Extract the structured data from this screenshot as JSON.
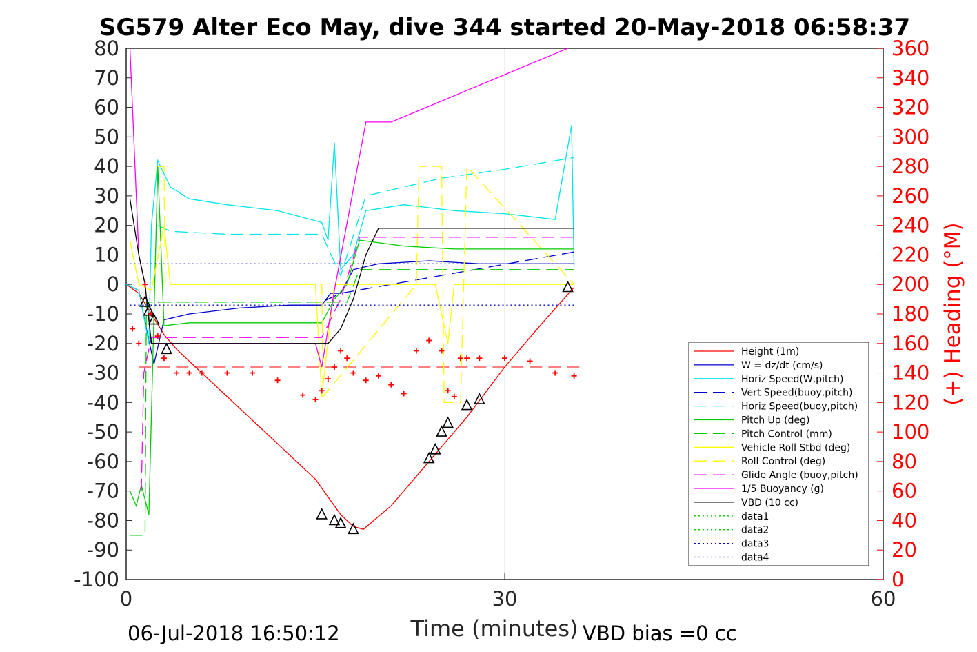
{
  "chart_data": {
    "type": "line",
    "title": "SG579 Alter Eco May, dive 344 started 20-May-2018 06:58:37",
    "xlabel": "Time (minutes)",
    "ylabel": "",
    "y2label": "(+) Heading (°M)",
    "xlim": [
      0,
      60
    ],
    "ylim": [
      -100,
      80
    ],
    "y2lim": [
      0,
      360
    ],
    "xticks": [
      "0",
      "30",
      "60"
    ],
    "yticks": [
      "80",
      "70",
      "60",
      "50",
      "40",
      "30",
      "20",
      "10",
      "0",
      "-10",
      "-20",
      "-30",
      "-40",
      "-50",
      "-60",
      "-70",
      "-80",
      "-90",
      "-100"
    ],
    "y2ticks": [
      "360",
      "340",
      "320",
      "300",
      "280",
      "260",
      "240",
      "220",
      "200",
      "180",
      "160",
      "140",
      "120",
      "100",
      "80",
      "60",
      "40",
      "20",
      "0"
    ],
    "grid": "x only",
    "legend_position": "bottom-right",
    "footer_left": "06-Jul-2018 16:50:12",
    "footer_right": "VBD bias =0 cc",
    "series": [
      {
        "name": "Height (1m)",
        "color": "#ff0000",
        "style": "solid",
        "x": [
          0.0,
          1.0,
          2.0,
          3.0,
          4.0,
          6.0,
          9.0,
          12.0,
          15.0,
          17.0,
          18.0,
          18.8,
          21.0,
          24.0,
          27.0,
          30.0,
          33.0,
          35.5
        ],
        "y": [
          0,
          -3,
          -10,
          -17,
          -22,
          -30,
          -42,
          -54,
          -66,
          -78,
          -82,
          -83,
          -75,
          -60,
          -45,
          -28,
          -13,
          -1
        ]
      },
      {
        "name": "W = dz/dt (cm/s)",
        "color": "#0000cc",
        "style": "solid",
        "x": [
          0.0,
          1.0,
          1.6,
          2.2,
          3.0,
          5,
          9,
          13,
          15.5,
          16.2,
          17,
          18,
          20,
          24,
          28,
          32,
          35.5
        ],
        "y": [
          0,
          -2,
          -15,
          -27,
          -12,
          -10,
          -8,
          -7,
          -7,
          -3,
          -3,
          5,
          7,
          8,
          7,
          7,
          7
        ]
      },
      {
        "name": "Horiz Speed(W,pitch)",
        "color": "#00e5e5",
        "style": "solid",
        "x": [
          0.0,
          1.0,
          1.8,
          2.0,
          2.5,
          3.5,
          5,
          8,
          12,
          15.5,
          16,
          16.5,
          17,
          18,
          19,
          22,
          26,
          30,
          34,
          35.3,
          35.5
        ],
        "y": [
          0,
          -2,
          -20,
          20,
          42,
          33,
          29,
          27,
          25,
          21,
          15,
          48,
          5,
          10,
          25,
          27,
          25,
          24,
          22,
          54,
          6
        ]
      },
      {
        "name": "Vert Speed(buoy,pitch)",
        "color": "#0000cc",
        "style": "dashed",
        "x": [
          2.5,
          15.5,
          17,
          35.5
        ],
        "y": [
          -6,
          -6,
          -3,
          11
        ]
      },
      {
        "name": "Horiz Speed(buoy,pitch)",
        "color": "#00e5e5",
        "style": "dashed",
        "x": [
          2.5,
          3.5,
          8,
          15.5,
          17,
          19,
          25,
          30,
          35.5
        ],
        "y": [
          20,
          18,
          17,
          17,
          3,
          30,
          36,
          39,
          43
        ]
      },
      {
        "name": "Pitch Up (deg)",
        "color": "#00cc00",
        "style": "solid",
        "x": [
          0.3,
          0.8,
          1.2,
          1.8,
          2.5,
          3.0,
          5,
          10,
          15.5,
          16.5,
          17.5,
          18.5,
          22,
          26,
          30,
          35.5
        ],
        "y": [
          -70,
          -75,
          -68,
          -78,
          40,
          -14,
          -13,
          -13,
          -13,
          -5,
          0,
          15,
          13,
          12,
          12,
          12
        ]
      },
      {
        "name": "Pitch Control (mm)",
        "color": "#00cc00",
        "style": "dashed",
        "x": [
          0.3,
          1.5,
          1.6,
          2.5,
          15.5,
          17.5,
          18.5,
          35.5
        ],
        "y": [
          -85,
          -85,
          -6,
          -6,
          -6,
          -6,
          5,
          5
        ]
      },
      {
        "name": "Vehicle Roll Stbd (deg)",
        "color": "#ffff00",
        "style": "solid",
        "x": [
          0.3,
          1.0,
          2.0,
          3.0,
          3.5,
          5,
          10,
          15,
          15.5,
          16.5,
          17,
          22,
          24.5,
          25.5,
          26,
          28,
          32,
          35.5
        ],
        "y": [
          15,
          0,
          -2,
          20,
          0,
          0,
          0,
          0,
          -38,
          0,
          0,
          0,
          0,
          -20,
          0,
          0,
          0,
          0
        ]
      },
      {
        "name": "Roll Control (deg)",
        "color": "#ffff00",
        "style": "dashed",
        "x": [
          2.5,
          3.0,
          3.1,
          15.5,
          15.6,
          23,
          23.2,
          25,
          25.2,
          26.5,
          27,
          35.5
        ],
        "y": [
          40,
          40,
          0,
          0,
          -38,
          0,
          40,
          40,
          -40,
          -40,
          40,
          0
        ]
      },
      {
        "name": "Glide Angle (buoy,pitch)",
        "color": "#ff00ff",
        "style": "dashed",
        "x": [
          1.2,
          1.4,
          2.0,
          2.5,
          15.5,
          17,
          18.5,
          35.5
        ],
        "y": [
          -70,
          -30,
          -18,
          -18,
          -18,
          -5,
          16,
          16
        ]
      },
      {
        "name": "1/5 Buoyancy (g)",
        "color": "#ff00ff",
        "style": "solid",
        "x": [
          0.3,
          1.0,
          1.5,
          2.0,
          3.0,
          15,
          15.5,
          16.5,
          19,
          20,
          21,
          35
        ],
        "y": [
          80,
          10,
          0,
          -20,
          -20,
          -20,
          -28,
          -2,
          55,
          55,
          55,
          80
        ]
      },
      {
        "name": "VBD (10 cc)",
        "color": "#000000",
        "style": "solid",
        "x": [
          0.3,
          1.0,
          1.5,
          2.0,
          3.0,
          15,
          16,
          17,
          18,
          19,
          20,
          35.5
        ],
        "y": [
          29,
          10,
          0,
          -20,
          -20,
          -20,
          -20,
          -15,
          -5,
          10,
          19,
          19
        ]
      },
      {
        "name": "data1",
        "color": "#00cc00",
        "style": "dotted",
        "x": [
          0,
          0
        ],
        "y": [
          0,
          0
        ]
      },
      {
        "name": "data2",
        "color": "#00cc00",
        "style": "dotted",
        "x": [
          0,
          0
        ],
        "y": [
          0,
          0
        ]
      },
      {
        "name": "data3",
        "color": "#0000cc",
        "style": "dotted",
        "x": [
          0.3,
          35.5
        ],
        "y": [
          7,
          7
        ]
      },
      {
        "name": "data4",
        "color": "#0000cc",
        "style": "dotted",
        "x": [
          0.3,
          35.5
        ],
        "y": [
          -7,
          -7
        ]
      }
    ],
    "heading_series": {
      "marker": "+",
      "color": "#ff0000",
      "axis": "right",
      "x": [
        0.5,
        1.0,
        1.5,
        2.0,
        2.5,
        3.0,
        4.0,
        5.0,
        6.0,
        8.0,
        10.0,
        12.0,
        14.0,
        15.0,
        15.5,
        16.0,
        16.5,
        17.0,
        17.5,
        18.0,
        19.0,
        20.0,
        21.0,
        22.0,
        23.0,
        24.0,
        25.0,
        25.5,
        26.0,
        26.5,
        27.0,
        28.0,
        30.0,
        32.0,
        34.0,
        35.5
      ],
      "y": [
        170,
        160,
        200,
        180,
        165,
        150,
        140,
        140,
        140,
        140,
        140,
        135,
        125,
        122,
        128,
        136,
        144,
        155,
        150,
        140,
        135,
        138,
        132,
        126,
        155,
        162,
        155,
        128,
        124,
        150,
        150,
        150,
        150,
        148,
        140,
        138
      ]
    },
    "reference_line": {
      "color": "#ff0000",
      "style": "dashed",
      "y": -28
    },
    "annotation_markers": {
      "color": "#000000",
      "shape": "triangle",
      "x": [
        1.5,
        1.8,
        2.2,
        3.2,
        15.5,
        16.5,
        17.0,
        18.0,
        24.0,
        24.5,
        25.0,
        25.5,
        27.0,
        28.0,
        35.0
      ],
      "y": [
        -6,
        -9,
        -12,
        -22,
        -78,
        -80,
        -81,
        -83,
        -59,
        -56,
        -50,
        -47,
        -41,
        -39,
        -1
      ]
    }
  }
}
